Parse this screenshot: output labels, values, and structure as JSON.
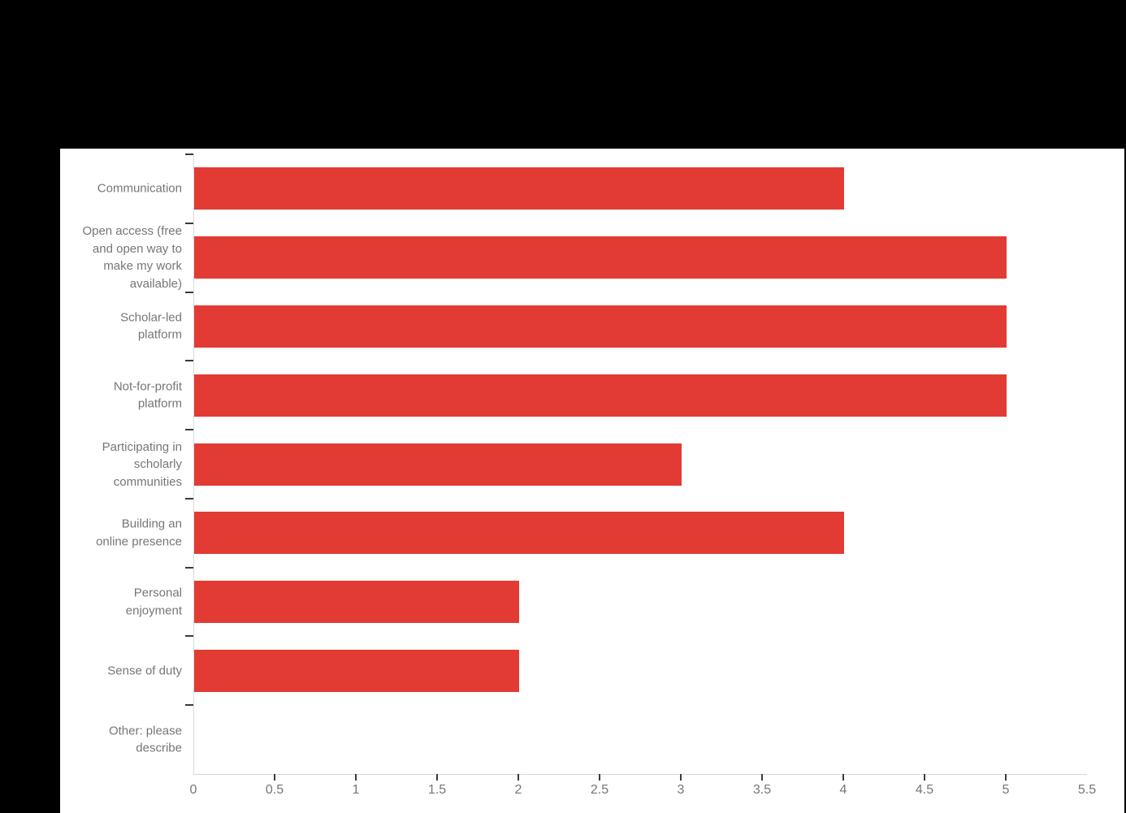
{
  "page": {
    "background_color": "#000000",
    "panel_color": "#ffffff"
  },
  "chart_data": {
    "type": "bar",
    "orientation": "horizontal",
    "categories": [
      "Communication",
      "Open access (free\nand open way to\nmake my work\navailable)",
      "Scholar-led\nplatform",
      "Not-for-profit\nplatform",
      "Participating in\nscholarly\ncommunities",
      "Building an\nonline presence",
      "Personal\nenjoyment",
      "Sense of duty",
      "Other: please\ndescribe"
    ],
    "values": [
      4,
      5,
      5,
      5,
      3,
      4,
      2,
      2,
      0
    ],
    "title": "",
    "xlabel": "",
    "ylabel": "",
    "xlim": [
      0,
      5.5
    ],
    "x_tick_values": [
      0,
      0.5,
      1,
      1.5,
      2,
      2.5,
      3,
      3.5,
      4,
      4.5,
      5,
      5.5
    ],
    "x_tick_labels": [
      "0",
      "0.5",
      "1",
      "1.5",
      "2",
      "2.5",
      "3",
      "3.5",
      "4",
      "4.5",
      "5",
      "5.5"
    ],
    "grid": false,
    "legend": "none",
    "bar_color": "#e23b33",
    "axis_line_color": "#d9d9d9",
    "tick_mark_color": "#3a3a3a",
    "text_color": "#767676"
  }
}
